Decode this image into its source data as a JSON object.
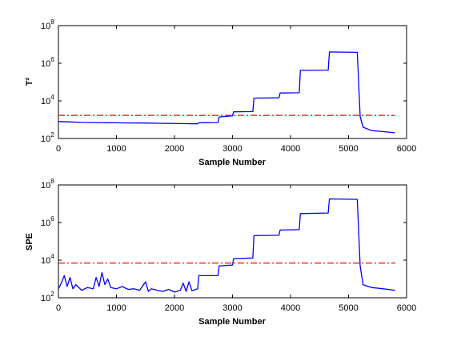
{
  "chart_data": [
    {
      "type": "line",
      "xlabel": "Sample Number",
      "ylabel": "T²",
      "yscale": "log",
      "xlim": [
        0,
        6000
      ],
      "ylim": [
        100,
        100000000
      ],
      "xticks": [
        0,
        1000,
        2000,
        3000,
        4000,
        5000,
        6000
      ],
      "yticks": [
        {
          "value": 100,
          "base": "10",
          "exp": "2"
        },
        {
          "value": 10000,
          "base": "10",
          "exp": "4"
        },
        {
          "value": 1000000,
          "base": "10",
          "exp": "6"
        },
        {
          "value": 100000000,
          "base": "10",
          "exp": "8"
        }
      ],
      "grid": false,
      "series": [
        {
          "color": "#0000ff",
          "style": "solid",
          "x": [
            0,
            200,
            400,
            600,
            800,
            1000,
            1200,
            1500,
            1800,
            2100,
            2400,
            2420,
            2750,
            2770,
            3000,
            3020,
            3350,
            3370,
            3800,
            3820,
            4150,
            4170,
            4650,
            4670,
            5150,
            5200,
            5250,
            5400,
            5600,
            5800
          ],
          "y": [
            800,
            760,
            720,
            700,
            690,
            680,
            670,
            660,
            640,
            620,
            600,
            680,
            700,
            1400,
            1600,
            2600,
            2700,
            14000,
            14500,
            26000,
            27000,
            420000,
            430000,
            4000000,
            3800000,
            1500,
            400,
            260,
            230,
            200
          ]
        },
        {
          "color": "#ff0000",
          "style": "dash-dot",
          "x": [
            0,
            5800
          ],
          "y": [
            1700,
            1700
          ]
        }
      ]
    },
    {
      "type": "line",
      "xlabel": "Sample Number",
      "ylabel": "SPE",
      "yscale": "log",
      "xlim": [
        0,
        6000
      ],
      "ylim": [
        100,
        100000000
      ],
      "xticks": [
        0,
        1000,
        2000,
        3000,
        4000,
        5000,
        6000
      ],
      "yticks": [
        {
          "value": 100,
          "base": "10",
          "exp": "2"
        },
        {
          "value": 10000,
          "base": "10",
          "exp": "4"
        },
        {
          "value": 1000000,
          "base": "10",
          "exp": "6"
        },
        {
          "value": 100000000,
          "base": "10",
          "exp": "8"
        }
      ],
      "grid": false,
      "series": [
        {
          "color": "#0000ff",
          "style": "solid",
          "x": [
            0,
            50,
            100,
            150,
            200,
            250,
            300,
            400,
            500,
            600,
            650,
            700,
            750,
            800,
            850,
            900,
            1000,
            1100,
            1200,
            1300,
            1400,
            1500,
            1550,
            1600,
            1700,
            1800,
            1900,
            2000,
            2100,
            2150,
            2200,
            2250,
            2300,
            2400,
            2420,
            2750,
            2770,
            3000,
            3020,
            3350,
            3370,
            3800,
            3820,
            4150,
            4170,
            4650,
            4670,
            5150,
            5200,
            5250,
            5400,
            5600,
            5800
          ],
          "y": [
            300,
            600,
            1500,
            400,
            1200,
            300,
            500,
            250,
            350,
            300,
            1200,
            400,
            2200,
            500,
            1000,
            350,
            300,
            400,
            280,
            300,
            250,
            700,
            220,
            300,
            250,
            220,
            280,
            200,
            250,
            600,
            220,
            700,
            240,
            300,
            1500,
            1500,
            5000,
            5500,
            12000,
            13000,
            200000,
            210000,
            400000,
            420000,
            3000000,
            3200000,
            18000000,
            17000000,
            5000,
            500,
            350,
            300,
            250
          ]
        },
        {
          "color": "#ff0000",
          "style": "dash-dot",
          "x": [
            0,
            5800
          ],
          "y": [
            7000,
            7000
          ]
        }
      ]
    }
  ]
}
